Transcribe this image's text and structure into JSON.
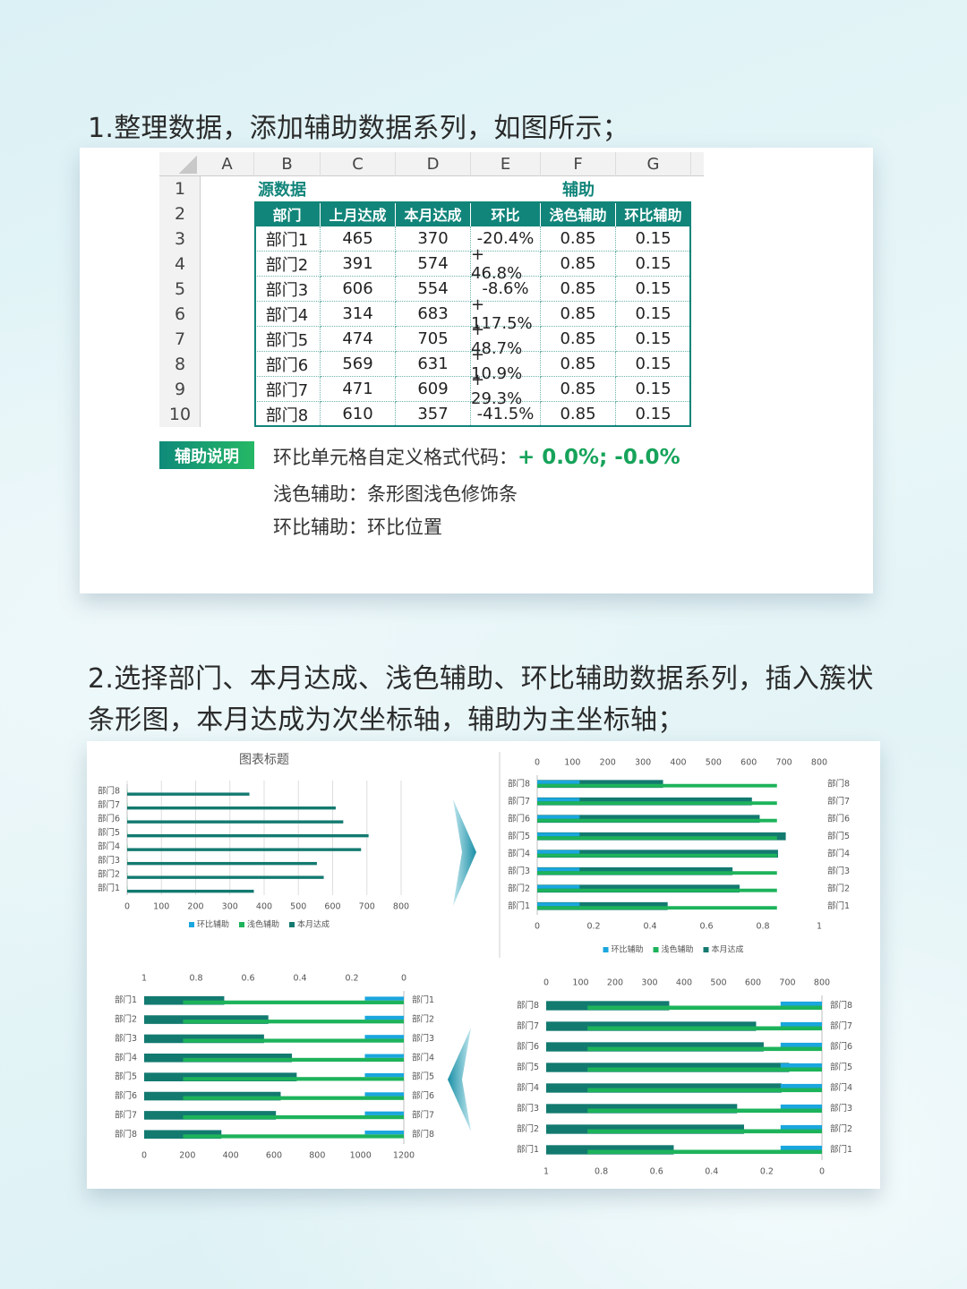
{
  "step1": {
    "title": "1.整理数据，添加辅助数据系列，如图所示；"
  },
  "sheet": {
    "columns": [
      "A",
      "B",
      "C",
      "D",
      "E",
      "F",
      "G"
    ],
    "row_numbers": [
      1,
      2,
      3,
      4,
      5,
      6,
      7,
      8,
      9,
      10
    ],
    "group_labels": [
      "源数据",
      "辅助"
    ],
    "header": [
      "部门",
      "上月达成",
      "本月达成",
      "环比",
      "浅色辅助",
      "环比辅助"
    ],
    "rows": [
      [
        "部门1",
        465,
        370,
        "-20.4%",
        0.85,
        0.15
      ],
      [
        "部门2",
        391,
        574,
        "+ 46.8%",
        0.85,
        0.15
      ],
      [
        "部门3",
        606,
        554,
        "-8.6%",
        0.85,
        0.15
      ],
      [
        "部门4",
        314,
        683,
        "+ 117.5%",
        0.85,
        0.15
      ],
      [
        "部门5",
        474,
        705,
        "+ 48.7%",
        0.85,
        0.15
      ],
      [
        "部门6",
        569,
        631,
        "+ 10.9%",
        0.85,
        0.15
      ],
      [
        "部门7",
        471,
        609,
        "+ 29.3%",
        0.85,
        0.15
      ],
      [
        "部门8",
        610,
        357,
        "-41.5%",
        0.85,
        0.15
      ]
    ]
  },
  "notes": {
    "badge": "辅助说明",
    "lines": [
      {
        "text": "环比单元格自定义格式代码：",
        "code": "+ 0.0%; -0.0%"
      },
      {
        "text": "浅色辅助：条形图浅色修饰条"
      },
      {
        "text": "环比辅助：环比位置"
      }
    ]
  },
  "step2": {
    "title": "2.选择部门、本月达成、浅色辅助、环比辅助数据系列，插入簇状条形图，本月达成为次坐标轴，辅助为主坐标轴；"
  },
  "charts": [
    {
      "type": "bar",
      "title": "图表标题",
      "categories": [
        "部门1",
        "部门2",
        "部门3",
        "部门4",
        "部门5",
        "部门6",
        "部门7",
        "部门8"
      ],
      "series": [
        {
          "name": "环比辅助",
          "color": "#1aa6de",
          "values": [
            0.15,
            0.15,
            0.15,
            0.15,
            0.15,
            0.15,
            0.15,
            0.15
          ]
        },
        {
          "name": "浅色辅助",
          "color": "#1db35b",
          "values": [
            0.85,
            0.85,
            0.85,
            0.85,
            0.85,
            0.85,
            0.85,
            0.85
          ]
        },
        {
          "name": "本月达成",
          "color": "#137a70",
          "values": [
            370,
            574,
            554,
            683,
            705,
            631,
            609,
            357
          ]
        }
      ],
      "xlim": [
        0,
        800
      ],
      "xticks": [
        0,
        100,
        200,
        300,
        400,
        500,
        600,
        700,
        800
      ],
      "x_position": "bottom",
      "grid": true,
      "legend": "bottom",
      "category_labels": "left"
    },
    {
      "type": "bar",
      "categories": [
        "部门1",
        "部门2",
        "部门3",
        "部门4",
        "部门5",
        "部门6",
        "部门7",
        "部门8"
      ],
      "series": [
        {
          "name": "环比辅助",
          "color": "#1aa6de",
          "values": [
            0.15,
            0.15,
            0.15,
            0.15,
            0.15,
            0.15,
            0.15,
            0.15
          ]
        },
        {
          "name": "浅色辅助",
          "color": "#1db35b",
          "values": [
            0.85,
            0.85,
            0.85,
            0.85,
            0.85,
            0.85,
            0.85,
            0.85
          ]
        },
        {
          "name": "本月达成",
          "color": "#137a70",
          "axis": "x2",
          "values": [
            370,
            574,
            554,
            683,
            705,
            631,
            609,
            357
          ]
        }
      ],
      "xlim": [
        0,
        1
      ],
      "xticks": [
        0,
        0.2,
        0.4,
        0.6,
        0.8,
        1
      ],
      "x_position": "bottom",
      "x2lim": [
        0,
        800
      ],
      "x2ticks": [
        0,
        100,
        200,
        300,
        400,
        500,
        600,
        700,
        800
      ],
      "x2_position": "top",
      "grid": false,
      "legend": "bottom",
      "category_labels": "both"
    },
    {
      "type": "bar",
      "categories": [
        "部门1",
        "部门2",
        "部门3",
        "部门4",
        "部门5",
        "部门6",
        "部门7",
        "部门8"
      ],
      "series": [
        {
          "name": "环比辅助",
          "color": "#1aa6de",
          "values": [
            0.15,
            0.15,
            0.15,
            0.15,
            0.15,
            0.15,
            0.15,
            0.15
          ]
        },
        {
          "name": "浅色辅助",
          "color": "#1db35b",
          "values": [
            0.85,
            0.85,
            0.85,
            0.85,
            0.85,
            0.85,
            0.85,
            0.85
          ]
        },
        {
          "name": "本月达成",
          "color": "#137a70",
          "axis": "x2",
          "values": [
            370,
            574,
            554,
            683,
            705,
            631,
            609,
            357
          ]
        }
      ],
      "xlim": [
        1,
        0
      ],
      "xticks": [
        1,
        0.8,
        0.6,
        0.4,
        0.2,
        0
      ],
      "x_position": "bottom",
      "x2lim": [
        0,
        800
      ],
      "x2ticks": [
        0,
        100,
        200,
        300,
        400,
        500,
        600,
        700,
        800
      ],
      "x2_position": "top",
      "grid": false,
      "category_labels": "both"
    },
    {
      "type": "bar",
      "categories": [
        "部门1",
        "部门2",
        "部门3",
        "部门4",
        "部门5",
        "部门6",
        "部门7",
        "部门8"
      ],
      "categories_reversed": true,
      "series": [
        {
          "name": "环比辅助",
          "color": "#1aa6de",
          "values": [
            0.15,
            0.15,
            0.15,
            0.15,
            0.15,
            0.15,
            0.15,
            0.15
          ]
        },
        {
          "name": "浅色辅助",
          "color": "#1db35b",
          "values": [
            0.85,
            0.85,
            0.85,
            0.85,
            0.85,
            0.85,
            0.85,
            0.85
          ]
        },
        {
          "name": "本月达成",
          "color": "#137a70",
          "axis": "x2",
          "values": [
            370,
            574,
            554,
            683,
            705,
            631,
            609,
            357
          ]
        }
      ],
      "xlim": [
        1,
        0
      ],
      "xticks": [
        1,
        0.8,
        0.6,
        0.4,
        0.2,
        0
      ],
      "x_position": "top",
      "x2lim": [
        0,
        1200
      ],
      "x2ticks": [
        0,
        200,
        400,
        600,
        800,
        1000,
        1200
      ],
      "x2_position": "bottom",
      "grid": false,
      "category_labels": "both"
    }
  ]
}
